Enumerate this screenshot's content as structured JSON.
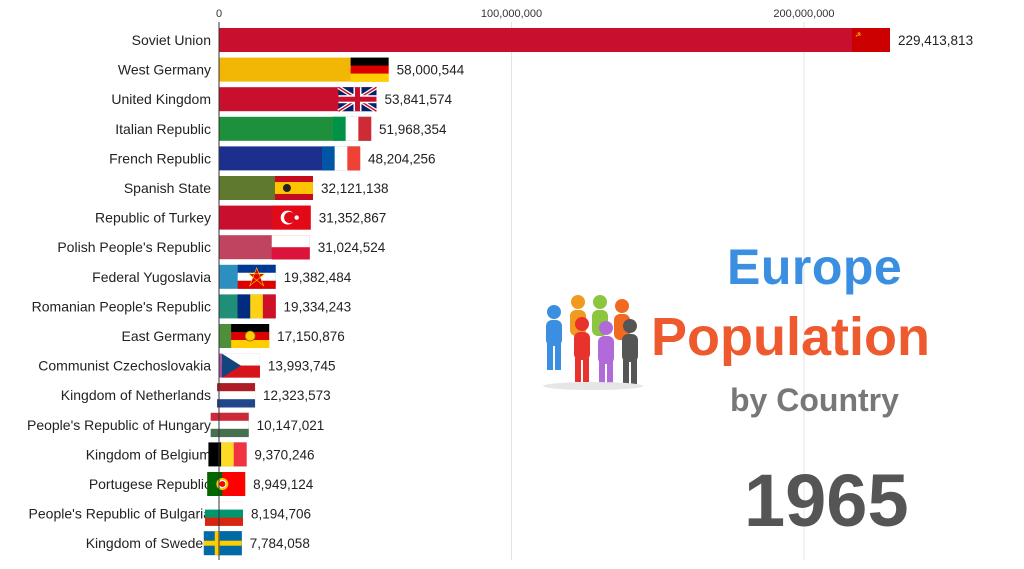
{
  "title": {
    "line1": "Europe",
    "line2": "Population",
    "line3": "by Country"
  },
  "year": "1965",
  "icon": "people-group-icon",
  "chart_data": {
    "type": "bar",
    "orientation": "horizontal",
    "xlim": [
      0,
      250000000
    ],
    "x_ticks": [
      0,
      100000000,
      200000000
    ],
    "x_tick_labels": [
      "0",
      "100,000,000",
      "200,000,000"
    ],
    "tick_position": "top",
    "grid": true,
    "categories": [
      "Soviet Union",
      "West Germany",
      "United Kingdom",
      "Italian Republic",
      "French Republic",
      "Spanish State",
      "Republic of Turkey",
      "Polish People's Republic",
      "Federal Yugoslavia",
      "Romanian People's Republic",
      "East Germany",
      "Communist Czechoslovakia",
      "Kingdom of Netherlands",
      "People's Republic of Hungary",
      "Kingdom of Belgium",
      "Portugese Republic",
      "People's Republic of Bulgaria",
      "Kingdom of Sweden"
    ],
    "values": [
      229413813,
      58000544,
      53841574,
      51968354,
      48204256,
      32121138,
      31352867,
      31024524,
      19382484,
      19334243,
      17150876,
      13993745,
      12323573,
      10147021,
      9370246,
      8949124,
      8194706,
      7784058
    ],
    "value_labels": [
      "229,413,813",
      "58,000,544",
      "53,841,574",
      "51,968,354",
      "48,204,256",
      "32,121,138",
      "31,352,867",
      "31,024,524",
      "19,382,484",
      "19,334,243",
      "17,150,876",
      "13,993,745",
      "12,323,573",
      "10,147,021",
      "9,370,246",
      "8,949,124",
      "8,194,706",
      "7,784,058"
    ],
    "colors": [
      "#c8102e",
      "#f2b705",
      "#c8102e",
      "#1e8f3a",
      "#1c2f8c",
      "#5f7a2e",
      "#c8102e",
      "#c0435f",
      "#2d8fbf",
      "#1f8f7a",
      "#4f8f3a",
      "#b04a9a",
      "#a0553a",
      "#2d8fbf",
      "#8b3fa8",
      "#5f7a2e",
      "#b35a5a",
      "#2e6fb0"
    ],
    "flags": [
      {
        "type": "ussr"
      },
      {
        "type": "h",
        "c": [
          "#000000",
          "#dd0000",
          "#ffce00"
        ]
      },
      {
        "type": "uk"
      },
      {
        "type": "v",
        "c": [
          "#009246",
          "#ffffff",
          "#ce2b37"
        ]
      },
      {
        "type": "v",
        "c": [
          "#0055a4",
          "#ffffff",
          "#ef4135"
        ]
      },
      {
        "type": "spain"
      },
      {
        "type": "turkey"
      },
      {
        "type": "h",
        "c": [
          "#ffffff",
          "#dc143c"
        ]
      },
      {
        "type": "yugo"
      },
      {
        "type": "v",
        "c": [
          "#002b7f",
          "#fcd116",
          "#ce1126"
        ]
      },
      {
        "type": "gdr"
      },
      {
        "type": "czech"
      },
      {
        "type": "h",
        "c": [
          "#ae1c28",
          "#ffffff",
          "#21468b"
        ]
      },
      {
        "type": "h",
        "c": [
          "#ce2939",
          "#ffffff",
          "#477050"
        ]
      },
      {
        "type": "v",
        "c": [
          "#000000",
          "#fdda24",
          "#ef3340"
        ]
      },
      {
        "type": "portugal"
      },
      {
        "type": "h",
        "c": [
          "#ffffff",
          "#00966e",
          "#d62612"
        ]
      },
      {
        "type": "sweden"
      }
    ]
  }
}
